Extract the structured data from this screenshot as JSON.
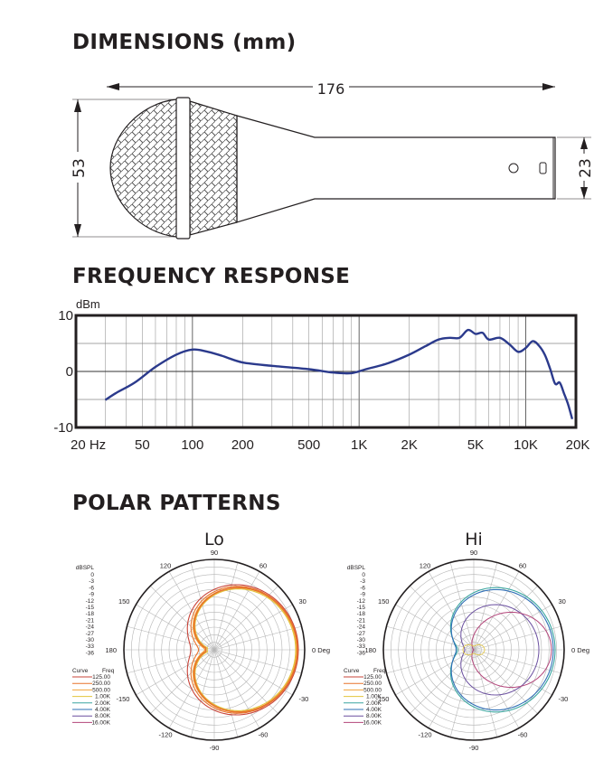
{
  "dimensions": {
    "title": "DIMENSIONS (mm)",
    "length_label": "176",
    "head_diameter_label": "53",
    "handle_diameter_label": "23"
  },
  "frequency_response": {
    "title": "FREQUENCY RESPONSE",
    "unit_label": "dBm"
  },
  "polar_patterns": {
    "title": "POLAR PATTERNS",
    "lo": {
      "title": "Lo",
      "scale_label": "dBSPL",
      "scale_ticks": [
        "0",
        "-3",
        "-6",
        "-9",
        "-12",
        "-15",
        "-18",
        "-21",
        "-24",
        "-27",
        "-30",
        "-33",
        "-36"
      ],
      "curve_header": "Curve",
      "freq_header": "Freq",
      "legend": [
        {
          "freq": "125.00",
          "color": "#c8443a"
        },
        {
          "freq": "250.00",
          "color": "#e8742c"
        },
        {
          "freq": "500.00",
          "color": "#f2a33a"
        },
        {
          "freq": "1.00K",
          "color": "#e2c43c"
        },
        {
          "freq": "2.00K",
          "color": "#3aa6a0"
        },
        {
          "freq": "4.00K",
          "color": "#2f6fb6"
        },
        {
          "freq": "8.00K",
          "color": "#6a4f9f"
        },
        {
          "freq": "16.00K",
          "color": "#b3457a"
        }
      ],
      "angle_labels": {
        "a90": "90",
        "a60": "60",
        "a30": "30",
        "a0": "0 Deg",
        "am30": "-30",
        "am60": "-60",
        "am90": "-90",
        "am120": "-120",
        "am150": "-150",
        "a180": "180",
        "a150": "150",
        "a120": "120"
      }
    },
    "hi": {
      "title": "Hi",
      "scale_label": "dBSPL",
      "scale_ticks": [
        "0",
        "-3",
        "-6",
        "-9",
        "-12",
        "-15",
        "-18",
        "-21",
        "-24",
        "-27",
        "-30",
        "-33",
        "-36"
      ],
      "curve_header": "Curve",
      "freq_header": "Freq",
      "legend": [
        {
          "freq": "125.00",
          "color": "#c8443a"
        },
        {
          "freq": "250.00",
          "color": "#e8742c"
        },
        {
          "freq": "500.00",
          "color": "#f2a33a"
        },
        {
          "freq": "1.00K",
          "color": "#e2c43c"
        },
        {
          "freq": "2.00K",
          "color": "#3aa6a0"
        },
        {
          "freq": "4.00K",
          "color": "#2f6fb6"
        },
        {
          "freq": "8.00K",
          "color": "#6a4f9f"
        },
        {
          "freq": "16.00K",
          "color": "#b3457a"
        }
      ],
      "angle_labels": {
        "a90": "90",
        "a60": "60",
        "a30": "30",
        "a0": "0 Deg",
        "am30": "-30",
        "am60": "-60",
        "am90": "-90",
        "am120": "-120",
        "am150": "-150",
        "a180": "180",
        "a150": "150",
        "a120": "120"
      }
    }
  },
  "chart_data": {
    "type": "line",
    "x_scale": "log",
    "xlim": [
      20,
      20000
    ],
    "ylim": [
      -10,
      10
    ],
    "ylabel": "dBm",
    "grid": true,
    "x_tick_labels": [
      {
        "value": 20,
        "label": "20 Hz"
      },
      {
        "value": 50,
        "label": "50"
      },
      {
        "value": 100,
        "label": "100"
      },
      {
        "value": 200,
        "label": "200"
      },
      {
        "value": 500,
        "label": "500"
      },
      {
        "value": 1000,
        "label": "1K"
      },
      {
        "value": 2000,
        "label": "2K"
      },
      {
        "value": 5000,
        "label": "5K"
      },
      {
        "value": 10000,
        "label": "10K"
      },
      {
        "value": 20000,
        "label": "20K"
      }
    ],
    "y_tick_labels": [
      {
        "value": 10,
        "label": "10"
      },
      {
        "value": 0,
        "label": "0"
      },
      {
        "value": -10,
        "label": "-10"
      }
    ],
    "line_color": "#2b3a8c",
    "series": [
      {
        "x": [
          30,
          35,
          45,
          60,
          80,
          100,
          120,
          150,
          200,
          300,
          500,
          700,
          900,
          1100,
          1500,
          2000,
          2500,
          3000,
          3500,
          4000,
          4500,
          5000,
          5500,
          6000,
          7000,
          8000,
          9000,
          10000,
          11000,
          12000,
          13000,
          14000,
          15000,
          16000,
          17000,
          18000,
          19000
        ],
        "y": [
          -5.1,
          -3.8,
          -2.0,
          0.8,
          3.0,
          3.9,
          3.6,
          2.8,
          1.6,
          1.0,
          0.4,
          -0.2,
          -0.3,
          0.4,
          1.5,
          3.0,
          4.5,
          5.7,
          6.0,
          6.0,
          7.4,
          6.7,
          6.9,
          5.7,
          6.0,
          4.8,
          3.5,
          4.2,
          5.4,
          4.6,
          3.0,
          0.5,
          -2.2,
          -2.0,
          -4.0,
          -6.0,
          -8.5
        ]
      }
    ]
  }
}
